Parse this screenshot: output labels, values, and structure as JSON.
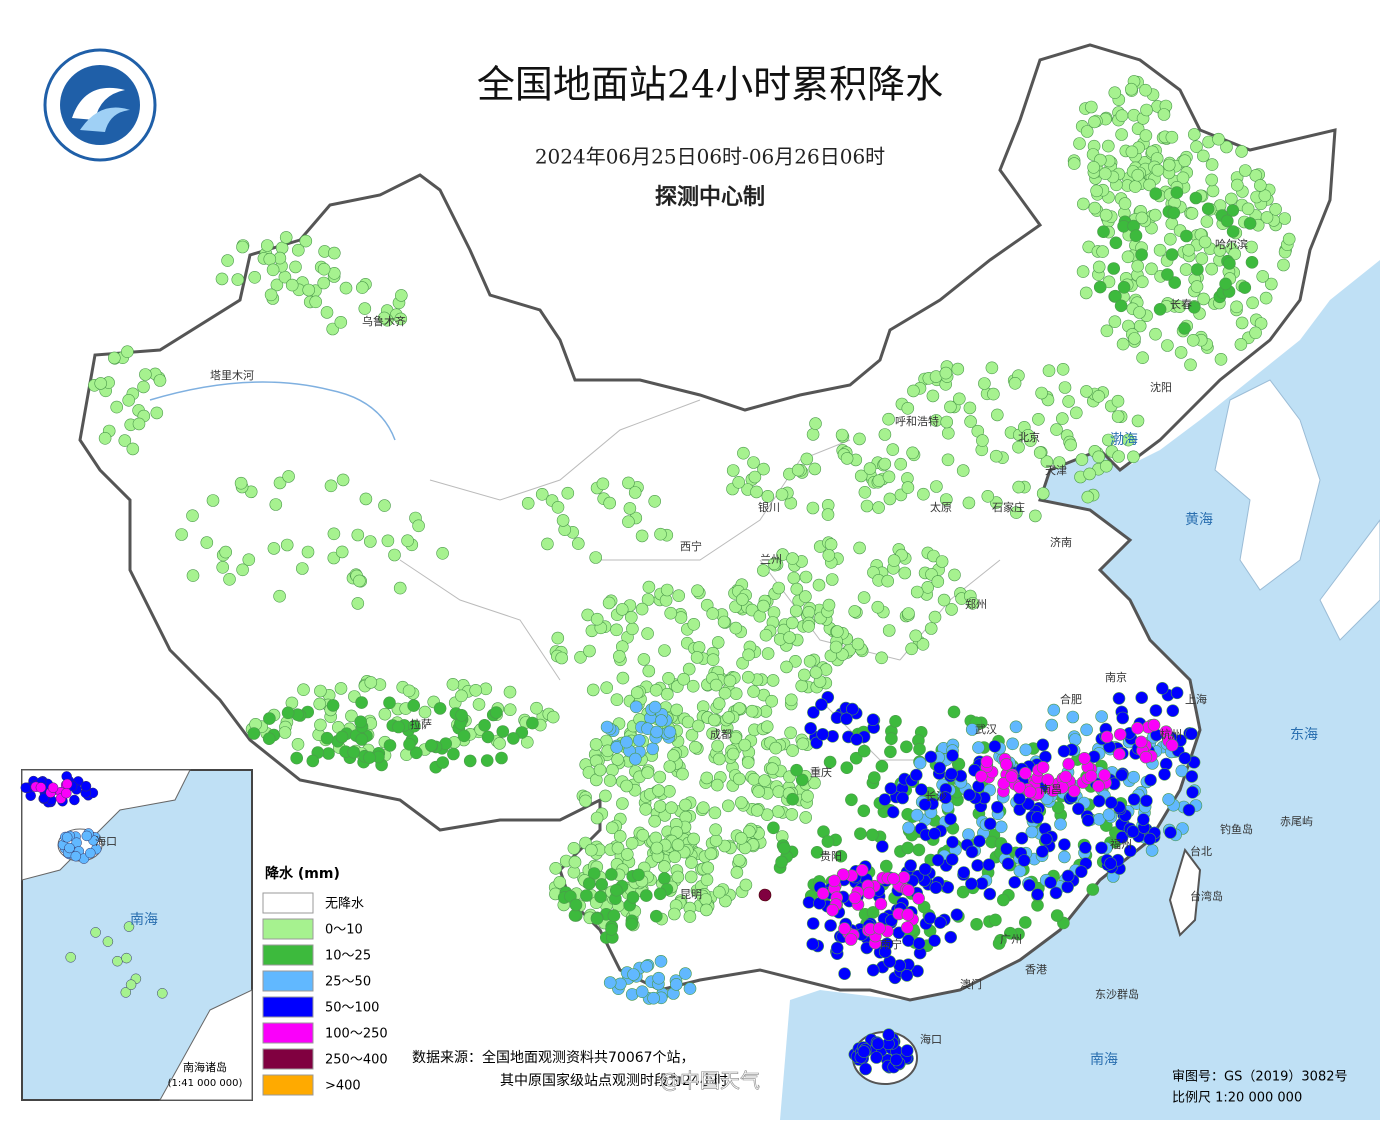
{
  "header": {
    "title": "全国地面站24小时累积降水",
    "period": "2024年06月25日06时-06月26日06时",
    "maker": "探测中心制"
  },
  "legend": {
    "title": "降水 (mm)",
    "items": [
      {
        "label": "无降水",
        "color": "#ffffff"
      },
      {
        "label": "0～10",
        "color": "#a6f28f"
      },
      {
        "label": "10～25",
        "color": "#3dba3d"
      },
      {
        "label": "25～50",
        "color": "#61b8ff"
      },
      {
        "label": "50～100",
        "color": "#0000ff"
      },
      {
        "label": "100～250",
        "color": "#fa00fa"
      },
      {
        "label": "250～400",
        "color": "#800040"
      },
      {
        "label": ">400",
        "color": "#ffaa00"
      }
    ]
  },
  "source": {
    "line1": "数据来源：全国地面观测资料共70067个站，",
    "line2": "其中原国家级站点观测时段为24小时"
  },
  "map_info": {
    "approval": "审图号：GS（2019）3082号",
    "scale": "比例尺 1:20 000 000"
  },
  "inset": {
    "title": "南海诸岛",
    "scale": "(1:41 000 000)",
    "labels": [
      "海口",
      "南海"
    ]
  },
  "places": [
    "乌鲁木齐",
    "塔里木河",
    "哈尔滨",
    "长春",
    "沈阳",
    "呼和浩特",
    "北京",
    "天津",
    "太原",
    "石家庄",
    "济南",
    "银川",
    "西宁",
    "兰州",
    "郑州",
    "拉萨",
    "成都",
    "重庆",
    "贵阳",
    "昆明",
    "南宁",
    "长沙",
    "武汉",
    "合肥",
    "南京",
    "上海",
    "杭州",
    "南昌",
    "福州",
    "广州",
    "香港",
    "澳门",
    "海口",
    "台北",
    "台湾岛",
    "钓鱼岛",
    "赤尾屿",
    "东沙群岛"
  ],
  "seas": [
    "渤海",
    "黄海",
    "东海",
    "南海"
  ],
  "watermark": "@中国天气"
}
